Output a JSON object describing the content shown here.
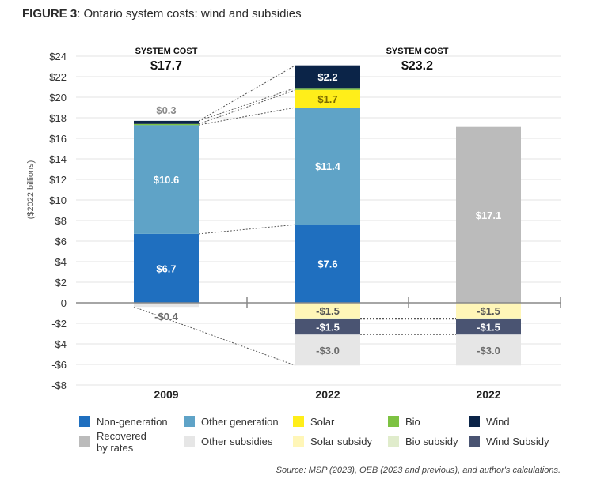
{
  "figure_label": "FIGURE 3",
  "figure_title": ": Ontario system costs: wind and subsidies",
  "source": "Source: MSP  (2023), OEB (2023 and previous), and author's calculations.",
  "chart_data": {
    "type": "bar",
    "stacked": true,
    "ylabel": "($2022 billions)",
    "ylim": [
      -8,
      24
    ],
    "yticks": [
      {
        "v": 24,
        "label": "$24"
      },
      {
        "v": 22,
        "label": "$22"
      },
      {
        "v": 20,
        "label": "$20"
      },
      {
        "v": 18,
        "label": "$18"
      },
      {
        "v": 16,
        "label": "$16"
      },
      {
        "v": 14,
        "label": "$14"
      },
      {
        "v": 12,
        "label": "$12"
      },
      {
        "v": 10,
        "label": "$10"
      },
      {
        "v": 8,
        "label": "$8"
      },
      {
        "v": 6,
        "label": "$6"
      },
      {
        "v": 4,
        "label": "$4"
      },
      {
        "v": 2,
        "label": "$2"
      },
      {
        "v": 0,
        "label": "0"
      },
      {
        "v": -2,
        "label": "-$2"
      },
      {
        "v": -4,
        "label": "-$4"
      },
      {
        "v": -6,
        "label": "-$6"
      },
      {
        "v": -8,
        "label": "-$8"
      }
    ],
    "grid": true,
    "legend_position": "bottom",
    "colors": {
      "non_generation": "#1f6fbf",
      "other_generation": "#5fa3c7",
      "solar": "#ffee1a",
      "bio": "#7dc242",
      "wind": "#0b2448",
      "recovered": "#bbbbbb",
      "other_subsidies": "#e6e6e6",
      "solar_subsidy": "#fff6b8",
      "bio_subsidy": "#e0eccc",
      "wind_subsidy": "#4a5472"
    },
    "categories": [
      "2009",
      "2022",
      "2022"
    ],
    "system_cost": [
      {
        "label": "SYSTEM COST",
        "value": "$17.7"
      },
      {
        "label": "SYSTEM COST",
        "value": "$23.2"
      }
    ],
    "bars": [
      {
        "category": "2009",
        "segments": [
          {
            "series": "non_generation",
            "value": 6.7,
            "label": "$6.7"
          },
          {
            "series": "other_generation",
            "value": 10.6,
            "label": "$10.6"
          },
          {
            "series": "bio",
            "value": 0.1,
            "label": ""
          },
          {
            "series": "wind",
            "value": 0.3,
            "label": "$0.3"
          },
          {
            "series": "other_subsidies",
            "value": -0.4,
            "label": "-$0.4"
          }
        ]
      },
      {
        "category": "2022",
        "segments": [
          {
            "series": "non_generation",
            "value": 7.6,
            "label": "$7.6"
          },
          {
            "series": "other_generation",
            "value": 11.4,
            "label": "$11.4"
          },
          {
            "series": "solar",
            "value": 1.7,
            "label": "$1.7"
          },
          {
            "series": "bio",
            "value": 0.2,
            "label": ""
          },
          {
            "series": "wind",
            "value": 2.2,
            "label": "$2.2"
          },
          {
            "series": "solar_subsidy",
            "value": -1.5,
            "label": "-$1.5"
          },
          {
            "series": "bio_subsidy",
            "value": -0.1,
            "label": ""
          },
          {
            "series": "wind_subsidy",
            "value": -1.5,
            "label": "-$1.5"
          },
          {
            "series": "other_subsidies",
            "value": -3.0,
            "label": "-$3.0"
          }
        ]
      },
      {
        "category": "2022",
        "segments": [
          {
            "series": "recovered",
            "value": 17.1,
            "label": "$17.1"
          },
          {
            "series": "solar_subsidy",
            "value": -1.5,
            "label": "-$1.5"
          },
          {
            "series": "bio_subsidy",
            "value": -0.1,
            "label": ""
          },
          {
            "series": "wind_subsidy",
            "value": -1.5,
            "label": "-$1.5"
          },
          {
            "series": "other_subsidies",
            "value": -3.0,
            "label": "-$3.0"
          }
        ]
      }
    ],
    "legend": [
      {
        "series": "non_generation",
        "label": "Non-generation"
      },
      {
        "series": "other_generation",
        "label": "Other generation"
      },
      {
        "series": "solar",
        "label": "Solar"
      },
      {
        "series": "bio",
        "label": "Bio"
      },
      {
        "series": "wind",
        "label": "Wind"
      },
      {
        "series": "recovered",
        "label": "Recovered\nby rates"
      },
      {
        "series": "other_subsidies",
        "label": "Other subsidies"
      },
      {
        "series": "solar_subsidy",
        "label": "Solar subsidy"
      },
      {
        "series": "bio_subsidy",
        "label": "Bio subsidy"
      },
      {
        "series": "wind_subsidy",
        "label": "Wind Subsidy"
      }
    ]
  }
}
